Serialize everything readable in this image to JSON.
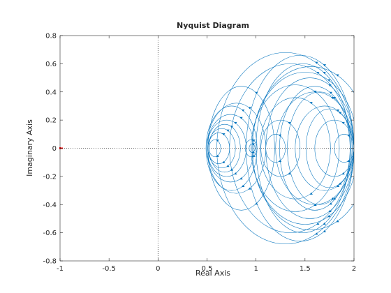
{
  "chart_data": {
    "type": "line",
    "title": "Nyquist Diagram",
    "xlabel": "Real Axis",
    "ylabel": "Imaginary Axis",
    "xlim": [
      -1,
      2
    ],
    "ylim": [
      -0.8,
      0.8
    ],
    "x_ticks": [
      -1,
      -0.5,
      0,
      0.5,
      1,
      1.5,
      2
    ],
    "x_tick_labels": [
      "-1",
      "-0.5",
      "0",
      "0.5",
      "1",
      "1.5",
      "2"
    ],
    "y_ticks": [
      -0.8,
      -0.6,
      -0.4,
      -0.2,
      0,
      0.2,
      0.4,
      0.6,
      0.8
    ],
    "y_tick_labels": [
      "-0.8",
      "-0.6",
      "-0.4",
      "-0.2",
      "0",
      "0.2",
      "0.4",
      "0.6",
      "0.8"
    ],
    "grid": false,
    "reference_lines": [
      {
        "orientation": "horizontal",
        "value": 0,
        "style": "dotted",
        "color": "#404040"
      },
      {
        "orientation": "vertical",
        "value": 0,
        "style": "dotted",
        "color": "#404040"
      }
    ],
    "critical_point": {
      "x": -1,
      "y": 0,
      "marker": "+",
      "color": "#ff0000"
    },
    "series_color": "#0072bd",
    "loops": [
      {
        "cx": 1.56,
        "r": 0.6,
        "ry": 0.58
      },
      {
        "cx": 1.5,
        "r": 0.54,
        "ry": 0.54
      },
      {
        "cx": 1.6,
        "r": 0.4,
        "ry": 0.4
      },
      {
        "cx": 1.45,
        "r": 0.55,
        "ry": 0.66
      },
      {
        "cx": 1.3,
        "r": 0.7,
        "ry": 0.68
      },
      {
        "cx": 1.7,
        "r": 0.3,
        "ry": 0.3
      },
      {
        "cx": 1.4,
        "r": 0.45,
        "ry": 0.45
      },
      {
        "cx": 1.55,
        "r": 0.45,
        "ry": 0.5
      },
      {
        "cx": 1.8,
        "r": 0.2,
        "ry": 0.2
      },
      {
        "cx": 1.25,
        "r": 0.2,
        "ry": 0.2
      },
      {
        "cx": 1.2,
        "r": 0.1,
        "ry": 0.1
      },
      {
        "cx": 1.6,
        "r": 0.36,
        "ry": 0.44
      },
      {
        "cx": 1.4,
        "r": 0.36,
        "ry": 0.36
      },
      {
        "cx": 1.48,
        "r": 0.48,
        "ry": 0.6
      },
      {
        "cx": 1.35,
        "r": 0.62,
        "ry": 0.6
      },
      {
        "cx": 1.65,
        "r": 0.33,
        "ry": 0.4
      },
      {
        "cx": 1.75,
        "r": 0.24,
        "ry": 0.28
      },
      {
        "cx": 1.9,
        "r": 0.1,
        "ry": 0.1
      },
      {
        "cx": 0.74,
        "r": 0.24,
        "ry": 0.24
      },
      {
        "cx": 0.7,
        "r": 0.2,
        "ry": 0.2
      },
      {
        "cx": 0.75,
        "r": 0.26,
        "ry": 0.3
      },
      {
        "cx": 0.68,
        "r": 0.16,
        "ry": 0.17
      },
      {
        "cx": 0.65,
        "r": 0.14,
        "ry": 0.14
      },
      {
        "cx": 0.62,
        "r": 0.11,
        "ry": 0.11
      },
      {
        "cx": 0.58,
        "r": 0.06,
        "ry": 0.06
      },
      {
        "cx": 0.8,
        "r": 0.3,
        "ry": 0.32
      },
      {
        "cx": 0.85,
        "r": 0.34,
        "ry": 0.44
      },
      {
        "cx": 0.96,
        "r": 0.03,
        "ry": 0.03
      },
      {
        "cx": 0.95,
        "r": 0.06,
        "ry": 0.06
      }
    ]
  }
}
